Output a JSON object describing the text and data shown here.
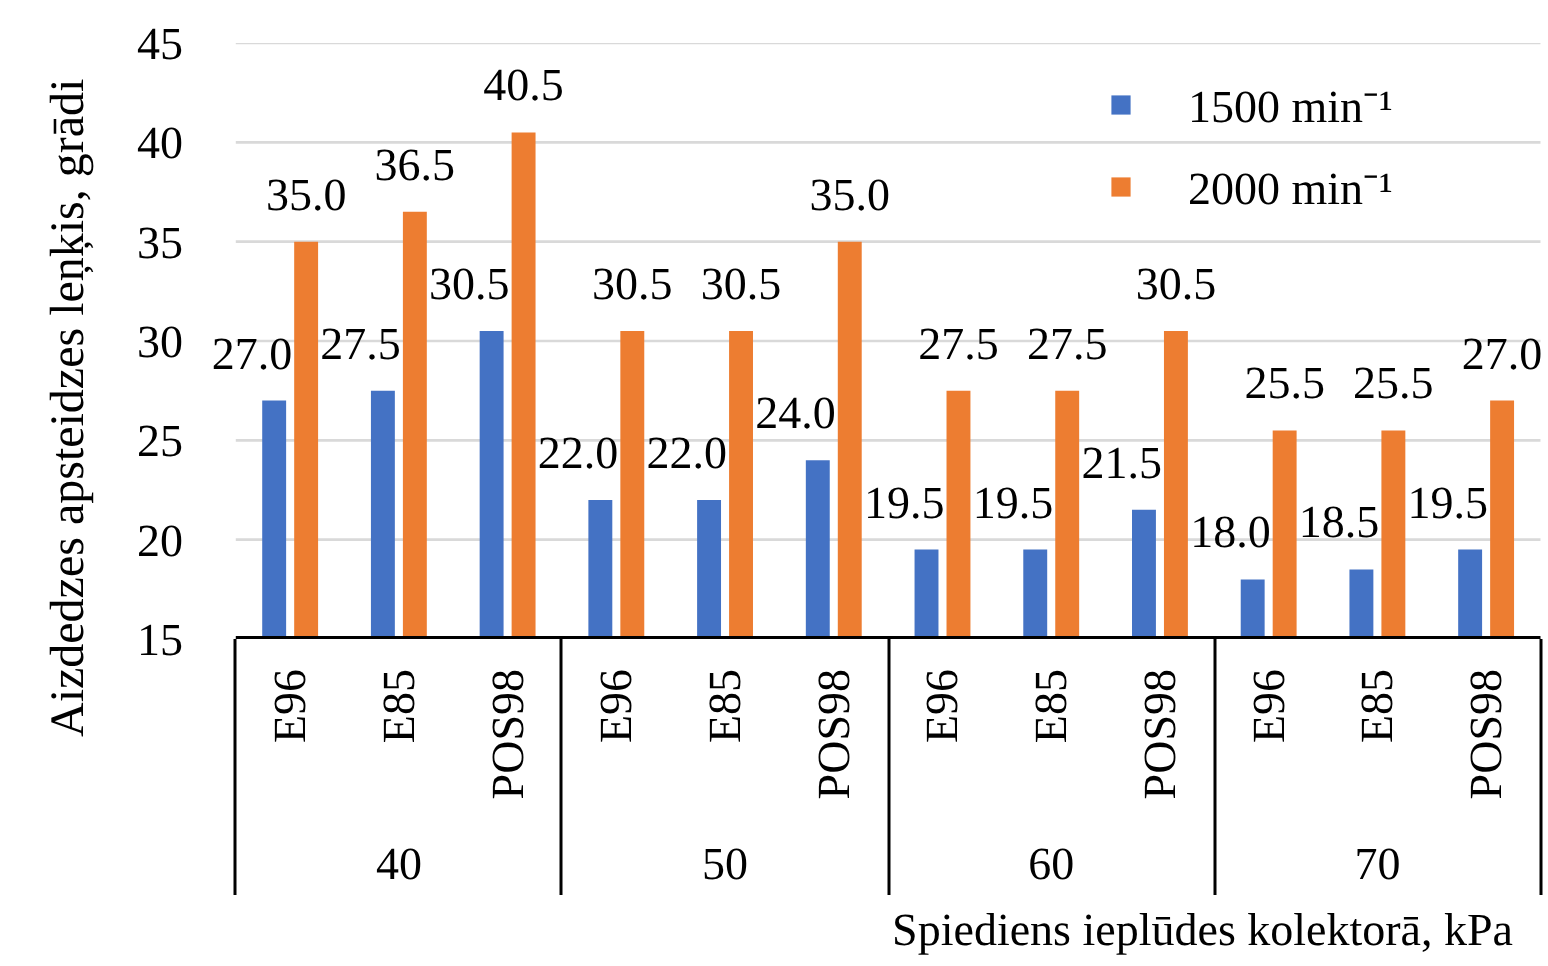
{
  "chart_data": {
    "type": "bar",
    "ylabel": "Aizdedzes apsteidzes leņķis, grādi",
    "xlabel": "Spiediens ieplūdes kolektorā, kPa",
    "categories": [
      "E96",
      "E85",
      "POS98",
      "E96",
      "E85",
      "POS98",
      "E96",
      "E85",
      "POS98",
      "E96",
      "E85",
      "POS98"
    ],
    "annotations": [
      "40",
      "50",
      "60",
      "70"
    ],
    "series": [
      {
        "name": "1500 min⁻¹",
        "color": "#4472c4",
        "values": [
          27.0,
          27.5,
          30.5,
          22.0,
          22.0,
          24.0,
          19.5,
          19.5,
          21.5,
          18.0,
          18.5,
          19.5
        ],
        "value_labels": [
          "27.0",
          "27.5",
          "30.5",
          "22.0",
          "22.0",
          "24.0",
          "19.5",
          "19.5",
          "21.5",
          "18.0",
          "18.5",
          "19.5"
        ]
      },
      {
        "name": "2000 min⁻¹",
        "color": "#ed7d31",
        "values": [
          35.0,
          36.5,
          40.5,
          30.5,
          30.5,
          35.0,
          27.5,
          27.5,
          30.5,
          25.5,
          25.5,
          27.0
        ],
        "value_labels": [
          "35.0",
          "36.5",
          "40.5",
          "30.5",
          "30.5",
          "35.0",
          "27.5",
          "27.5",
          "30.5",
          "25.5",
          "25.5",
          "27.0"
        ]
      }
    ],
    "ylim": [
      15,
      45
    ],
    "yticks": [
      15,
      20,
      25,
      30,
      35,
      40,
      45
    ],
    "grid": "y",
    "legend": "top right"
  }
}
